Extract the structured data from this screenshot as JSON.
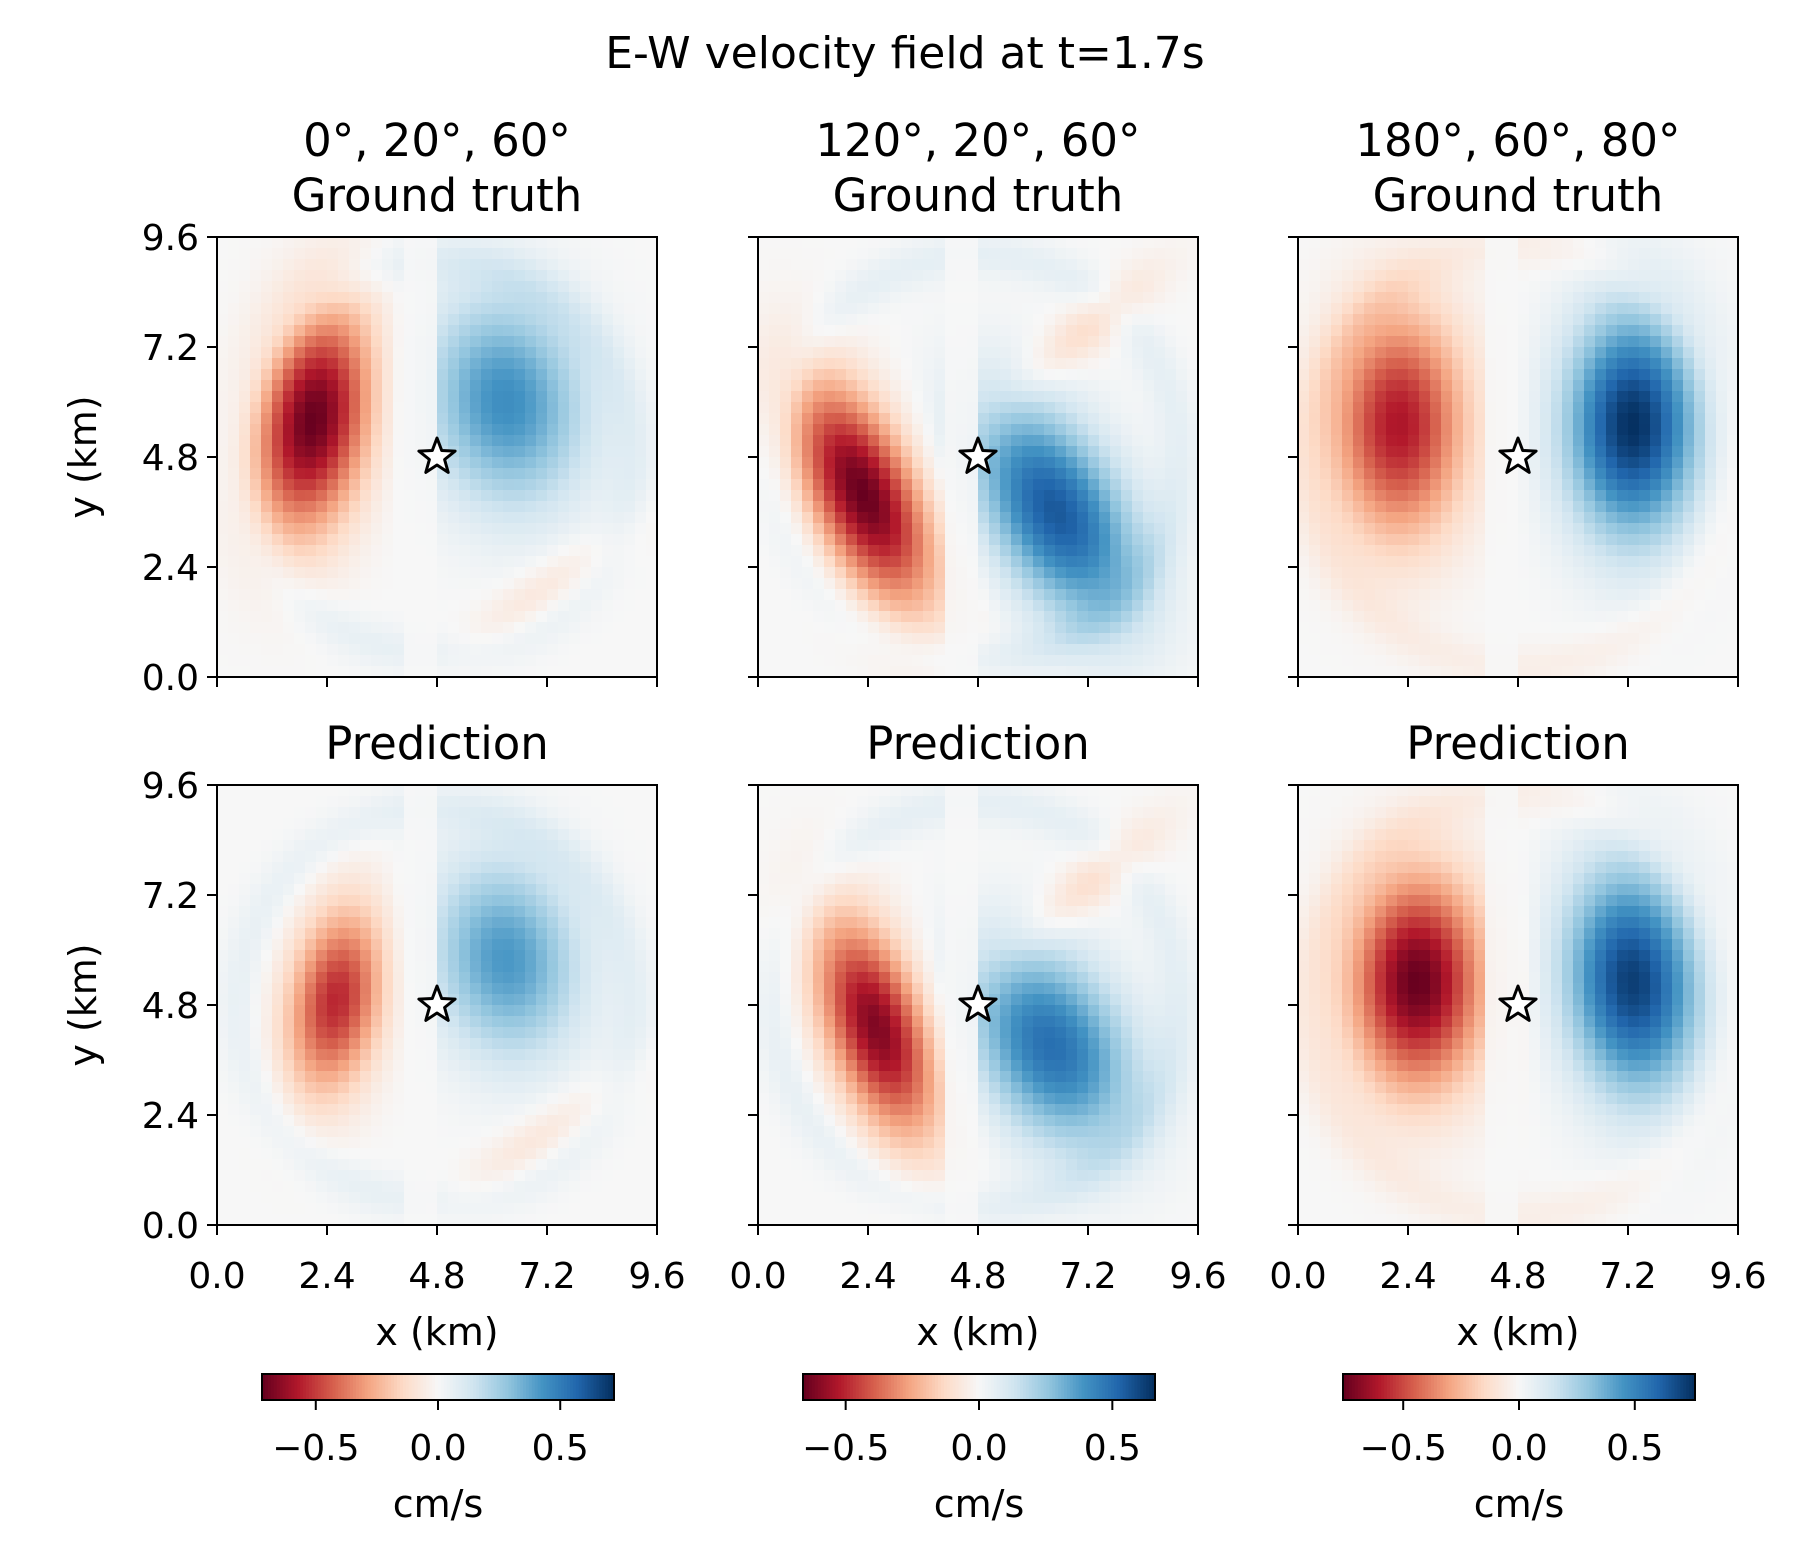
{
  "chart_data": {
    "type": "heatmap",
    "title": "E-W velocity field at t=1.7s",
    "colormap": "RdBu",
    "colormap_stops": [
      "#67001f",
      "#b2182b",
      "#d6604d",
      "#f4a582",
      "#fddbc7",
      "#f7f7f7",
      "#d1e5f0",
      "#92c5de",
      "#4393c3",
      "#2166ac",
      "#053061"
    ],
    "xlabel": "x (km)",
    "ylabel": "y (km)",
    "xlim": [
      0,
      9.6
    ],
    "ylim": [
      0,
      9.6
    ],
    "ticks": [
      "0.0",
      "2.4",
      "4.8",
      "7.2",
      "9.6"
    ],
    "tick_values": [
      0,
      2.4,
      4.8,
      7.2,
      9.6
    ],
    "source_marker": {
      "symbol": "star",
      "x": 4.8,
      "y": 4.8
    },
    "columns": [
      {
        "angles": "0°, 20°, 60°",
        "colorbar": {
          "label": "cm/s",
          "vmin": -0.72,
          "vmax": 0.72,
          "ticks": [
            -0.5,
            0.0,
            0.5
          ],
          "tick_labels": [
            "−0.5",
            "0.0",
            "0.5"
          ]
        },
        "panels": [
          {
            "title": "Ground truth",
            "lobes": [
              {
                "x": 2.1,
                "y": 5.6,
                "amp": -0.72,
                "sx": 0.85,
                "sy": 1.7,
                "rot": -10
              },
              {
                "x": 6.3,
                "y": 6.0,
                "amp": 0.45,
                "sx": 1.2,
                "sy": 1.6,
                "rot": 10
              },
              {
                "x": 7.2,
                "y": 1.9,
                "amp": -0.1,
                "sx": 1.6,
                "sy": 0.4,
                "rot": 35
              }
            ],
            "ring": {
              "r": 4.3,
              "w": 0.5,
              "amp": 0.06
            }
          },
          {
            "title": "Prediction",
            "lobes": [
              {
                "x": 2.6,
                "y": 4.9,
                "amp": -0.55,
                "sx": 0.7,
                "sy": 1.4,
                "rot": -10
              },
              {
                "x": 6.3,
                "y": 5.8,
                "amp": 0.42,
                "sx": 1.1,
                "sy": 1.5,
                "rot": 10
              },
              {
                "x": 7.1,
                "y": 1.9,
                "amp": -0.1,
                "sx": 1.6,
                "sy": 0.4,
                "rot": 35
              }
            ],
            "ring": {
              "r": 4.3,
              "w": 0.5,
              "amp": 0.06
            }
          }
        ]
      },
      {
        "angles": "120°, 20°, 60°",
        "colorbar": {
          "label": "cm/s",
          "vmin": -0.66,
          "vmax": 0.66,
          "ticks": [
            -0.5,
            0.0,
            0.5
          ],
          "tick_labels": [
            "−0.5",
            "0.0",
            "0.5"
          ]
        },
        "panels": [
          {
            "title": "Ground truth",
            "lobes": [
              {
                "x": 2.3,
                "y": 4.0,
                "amp": -0.66,
                "sx": 0.8,
                "sy": 1.8,
                "rot": 25
              },
              {
                "x": 6.5,
                "y": 3.6,
                "amp": 0.56,
                "sx": 1.0,
                "sy": 1.8,
                "rot": 30
              },
              {
                "x": 7.2,
                "y": 7.6,
                "amp": -0.12,
                "sx": 1.4,
                "sy": 0.4,
                "rot": 40
              }
            ],
            "ring": {
              "r": 4.4,
              "w": 0.5,
              "amp": 0.06
            }
          },
          {
            "title": "Prediction",
            "lobes": [
              {
                "x": 2.6,
                "y": 4.3,
                "amp": -0.62,
                "sx": 0.75,
                "sy": 1.7,
                "rot": 20
              },
              {
                "x": 6.4,
                "y": 3.9,
                "amp": 0.5,
                "sx": 1.1,
                "sy": 1.6,
                "rot": 30
              },
              {
                "x": 7.3,
                "y": 7.5,
                "amp": -0.12,
                "sx": 1.4,
                "sy": 0.4,
                "rot": 40
              }
            ],
            "ring": {
              "r": 4.4,
              "w": 0.5,
              "amp": 0.06
            }
          }
        ]
      },
      {
        "angles": "180°, 60°, 80°",
        "colorbar": {
          "label": "cm/s",
          "vmin": -0.76,
          "vmax": 0.76,
          "ticks": [
            -0.5,
            0.0,
            0.5
          ],
          "tick_labels": [
            "−0.5",
            "0.0",
            "0.5"
          ]
        },
        "panels": [
          {
            "title": "Ground truth",
            "lobes": [
              {
                "x": 2.2,
                "y": 5.5,
                "amp": -0.62,
                "sx": 1.0,
                "sy": 1.7,
                "rot": 0
              },
              {
                "x": 7.3,
                "y": 5.5,
                "amp": 0.76,
                "sx": 1.0,
                "sy": 1.7,
                "rot": 0
              }
            ],
            "ring": {
              "r": 4.6,
              "w": 0.5,
              "amp": -0.05
            }
          },
          {
            "title": "Prediction",
            "lobes": [
              {
                "x": 2.6,
                "y": 5.3,
                "amp": -0.76,
                "sx": 1.0,
                "sy": 1.6,
                "rot": 0
              },
              {
                "x": 7.3,
                "y": 5.3,
                "amp": 0.72,
                "sx": 1.0,
                "sy": 1.7,
                "rot": 5
              }
            ],
            "ring": {
              "r": 4.6,
              "w": 0.5,
              "amp": -0.05
            }
          }
        ]
      }
    ]
  }
}
